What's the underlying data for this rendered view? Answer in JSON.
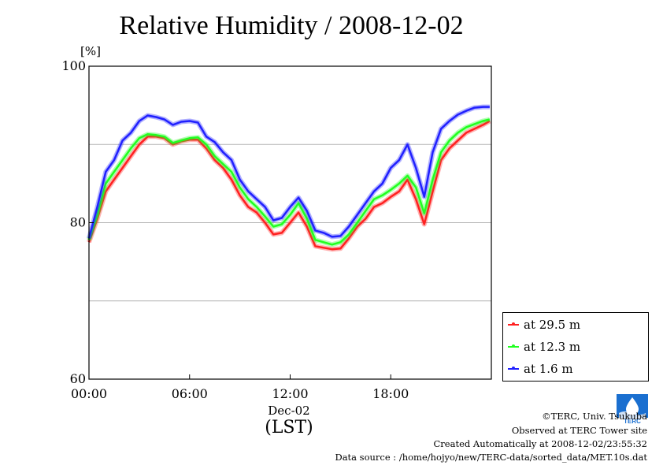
{
  "title": "Relative Humidity / 2008-12-02",
  "y_unit": "[%]",
  "x_date_label": "Dec-02",
  "x_timezone_label": "(LST)",
  "credits": {
    "copyright": "©TERC, Univ. Tsukuba",
    "site": "Observed at TERC Tower site",
    "created": "Created Automatically at 2008-12-02/23:55:32",
    "source": "Data source : /home/hojyo/new/TERC-data/sorted_data/MET.10s.dat"
  },
  "logo_text": "TERC",
  "colors": {
    "red": "#ff2020",
    "green": "#20ff20",
    "blue": "#2020ff",
    "grid": "#b4b4b4"
  },
  "chart_data": {
    "type": "line",
    "title": "Relative Humidity / 2008-12-02",
    "xlabel": "Dec-02 (LST)",
    "ylabel": "[%]",
    "x_unit": "hour",
    "xlim": [
      0,
      24
    ],
    "ylim": [
      60,
      100
    ],
    "x_ticks": [
      {
        "value": 0,
        "label": "00:00"
      },
      {
        "value": 6,
        "label": "06:00"
      },
      {
        "value": 12,
        "label": "12:00"
      },
      {
        "value": 18,
        "label": "18:00"
      }
    ],
    "y_ticks": [
      {
        "value": 60,
        "label": "60"
      },
      {
        "value": 80,
        "label": "80"
      },
      {
        "value": 100,
        "label": "100"
      }
    ],
    "y_grid": [
      70,
      80,
      90
    ],
    "legend_position": "bottom-right outside",
    "x": [
      0.0,
      0.5,
      1.0,
      1.5,
      2.0,
      2.5,
      3.0,
      3.5,
      4.0,
      4.5,
      5.0,
      5.5,
      6.0,
      6.5,
      7.0,
      7.5,
      8.0,
      8.5,
      9.0,
      9.5,
      10.0,
      10.5,
      11.0,
      11.5,
      12.0,
      12.5,
      13.0,
      13.5,
      14.0,
      14.5,
      15.0,
      15.5,
      16.0,
      16.5,
      17.0,
      17.5,
      18.0,
      18.5,
      19.0,
      19.5,
      20.0,
      20.5,
      21.0,
      21.5,
      22.0,
      22.5,
      23.0,
      23.5,
      23.9
    ],
    "series": [
      {
        "name": "at 29.5 m",
        "color": "#ff2020",
        "values": [
          77.5,
          80.5,
          84.0,
          85.5,
          87.0,
          88.5,
          90.0,
          91.0,
          91.0,
          90.8,
          90.0,
          90.4,
          90.6,
          90.6,
          89.5,
          88.0,
          87.0,
          85.5,
          83.5,
          82.0,
          81.3,
          80.0,
          78.5,
          78.7,
          80.0,
          81.3,
          79.5,
          77.0,
          76.8,
          76.6,
          76.7,
          78.0,
          79.5,
          80.5,
          82.0,
          82.5,
          83.3,
          84.0,
          85.5,
          83.0,
          79.8,
          84.0,
          88.0,
          89.5,
          90.5,
          91.5,
          92.0,
          92.5,
          93.0
        ]
      },
      {
        "name": "at 12.3 m",
        "color": "#20ff20",
        "values": [
          77.8,
          81.0,
          85.0,
          86.5,
          88.0,
          89.5,
          90.8,
          91.3,
          91.2,
          91.0,
          90.2,
          90.5,
          90.8,
          90.9,
          90.0,
          88.5,
          87.5,
          86.5,
          84.5,
          83.0,
          82.0,
          80.8,
          79.5,
          79.8,
          81.0,
          82.5,
          80.5,
          77.8,
          77.5,
          77.2,
          77.5,
          78.5,
          80.0,
          81.5,
          83.0,
          83.5,
          84.2,
          85.0,
          86.0,
          84.5,
          81.2,
          85.5,
          89.0,
          90.5,
          91.5,
          92.2,
          92.6,
          93.0,
          93.2
        ]
      },
      {
        "name": "at 1.6 m",
        "color": "#2020ff",
        "values": [
          78.0,
          82.0,
          86.5,
          88.0,
          90.5,
          91.5,
          93.0,
          93.7,
          93.5,
          93.2,
          92.5,
          92.9,
          93.0,
          92.8,
          91.0,
          90.3,
          89.0,
          88.0,
          85.5,
          84.0,
          83.0,
          82.0,
          80.3,
          80.6,
          82.0,
          83.2,
          81.5,
          79.0,
          78.7,
          78.2,
          78.3,
          79.5,
          81.0,
          82.5,
          84.0,
          85.0,
          87.0,
          88.0,
          90.0,
          87.0,
          83.3,
          89.0,
          92.0,
          93.0,
          93.8,
          94.3,
          94.7,
          94.8,
          94.8
        ]
      }
    ]
  }
}
